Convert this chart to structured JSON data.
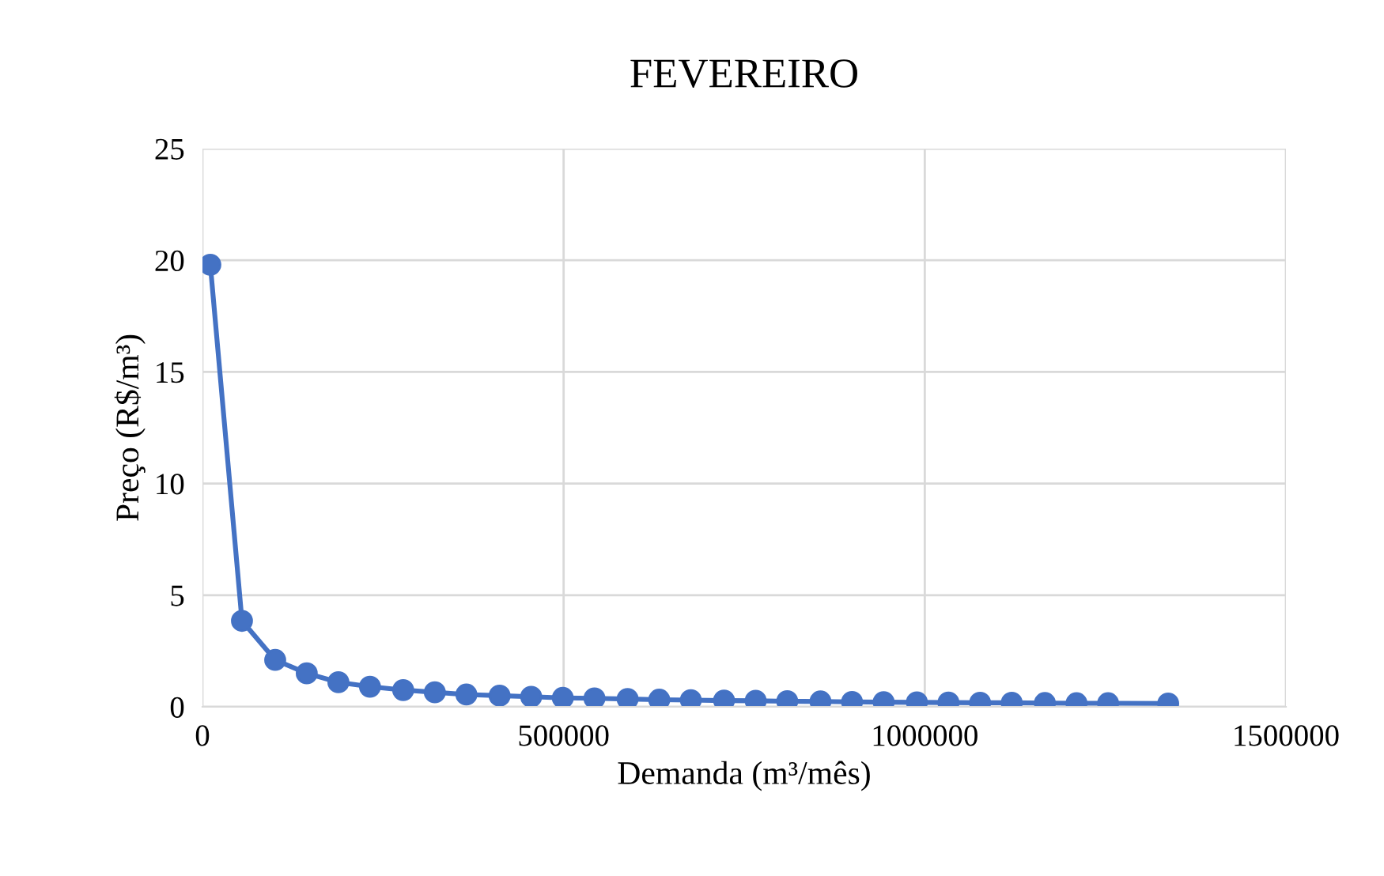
{
  "chart_data": {
    "type": "line",
    "title": "FEVEREIRO",
    "xlabel": "Demanda (m³/mês)",
    "ylabel": "Preço (R$/m³)",
    "x": [
      10900,
      54700,
      100700,
      144400,
      188200,
      231900,
      277900,
      321700,
      365400,
      411400,
      455100,
      498900,
      542700,
      588600,
      632400,
      676100,
      722100,
      765900,
      809600,
      855600,
      899300,
      943100,
      989100,
      1032800,
      1076600,
      1120400,
      1166300,
      1210100,
      1253800,
      1337000
    ],
    "series": [
      {
        "color": "#4472c4",
        "values": [
          19.8,
          3.85,
          2.1,
          1.5,
          1.1,
          0.9,
          0.75,
          0.65,
          0.55,
          0.5,
          0.45,
          0.4,
          0.38,
          0.35,
          0.32,
          0.3,
          0.28,
          0.27,
          0.25,
          0.24,
          0.22,
          0.21,
          0.2,
          0.19,
          0.18,
          0.18,
          0.17,
          0.16,
          0.16,
          0.15
        ]
      }
    ],
    "xlim": [
      0,
      1500000
    ],
    "xticks": [
      0,
      500000,
      1000000,
      1500000
    ],
    "ylim": [
      0,
      25
    ],
    "yticks": [
      0,
      5,
      10,
      15,
      20,
      25
    ],
    "grid": true,
    "marker": "circle",
    "line_style": "solid"
  }
}
